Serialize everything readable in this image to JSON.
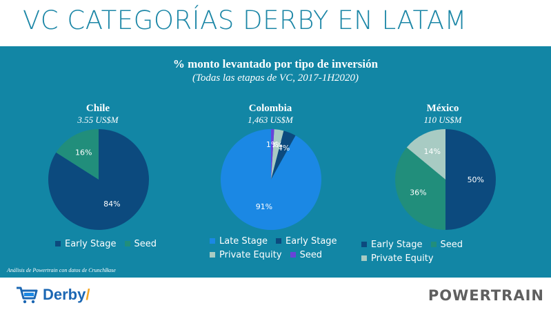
{
  "header": {
    "title": "VC CATEGORÍAS DERBY EN LATAM"
  },
  "panel": {
    "title": "% monto levantado por tipo de inversión",
    "subtitle": "(Todas las etapas de VC, 2017-1H2020)",
    "source": "Análisis de Powertrain con datos de CrunchBase"
  },
  "colors": {
    "early_stage": "#0c4a7e",
    "seed": "#218e7b",
    "late_stage": "#1b88e4",
    "private_equity": "#a8cbc3",
    "seed_colombia": "#6943d8",
    "panel_bg": "#1286a5"
  },
  "chart_data": [
    {
      "type": "pie",
      "title": "Chile",
      "subtitle": "3.55 US$M",
      "slices": [
        {
          "label": "Early Stage",
          "value": 84,
          "display": "84%"
        },
        {
          "label": "Seed",
          "value": 16,
          "display": "16%"
        }
      ]
    },
    {
      "type": "pie",
      "title": "Colombia",
      "subtitle": "1,463 US$M",
      "slices": [
        {
          "label": "Late Stage",
          "value": 91,
          "display": "91%"
        },
        {
          "label": "Early Stage",
          "value": 4,
          "display": "4%"
        },
        {
          "label": "Private Equity",
          "value": 3,
          "display": "3%"
        },
        {
          "label": "Seed",
          "value": 1,
          "display": "1%"
        }
      ]
    },
    {
      "type": "pie",
      "title": "México",
      "subtitle": "110 US$M",
      "slices": [
        {
          "label": "Early Stage",
          "value": 50,
          "display": "50%"
        },
        {
          "label": "Seed",
          "value": 36,
          "display": "36%"
        },
        {
          "label": "Private Equity",
          "value": 14,
          "display": "14%"
        }
      ]
    }
  ],
  "footer": {
    "brand_left": "Derby",
    "brand_right": "POWERTRAIN"
  }
}
